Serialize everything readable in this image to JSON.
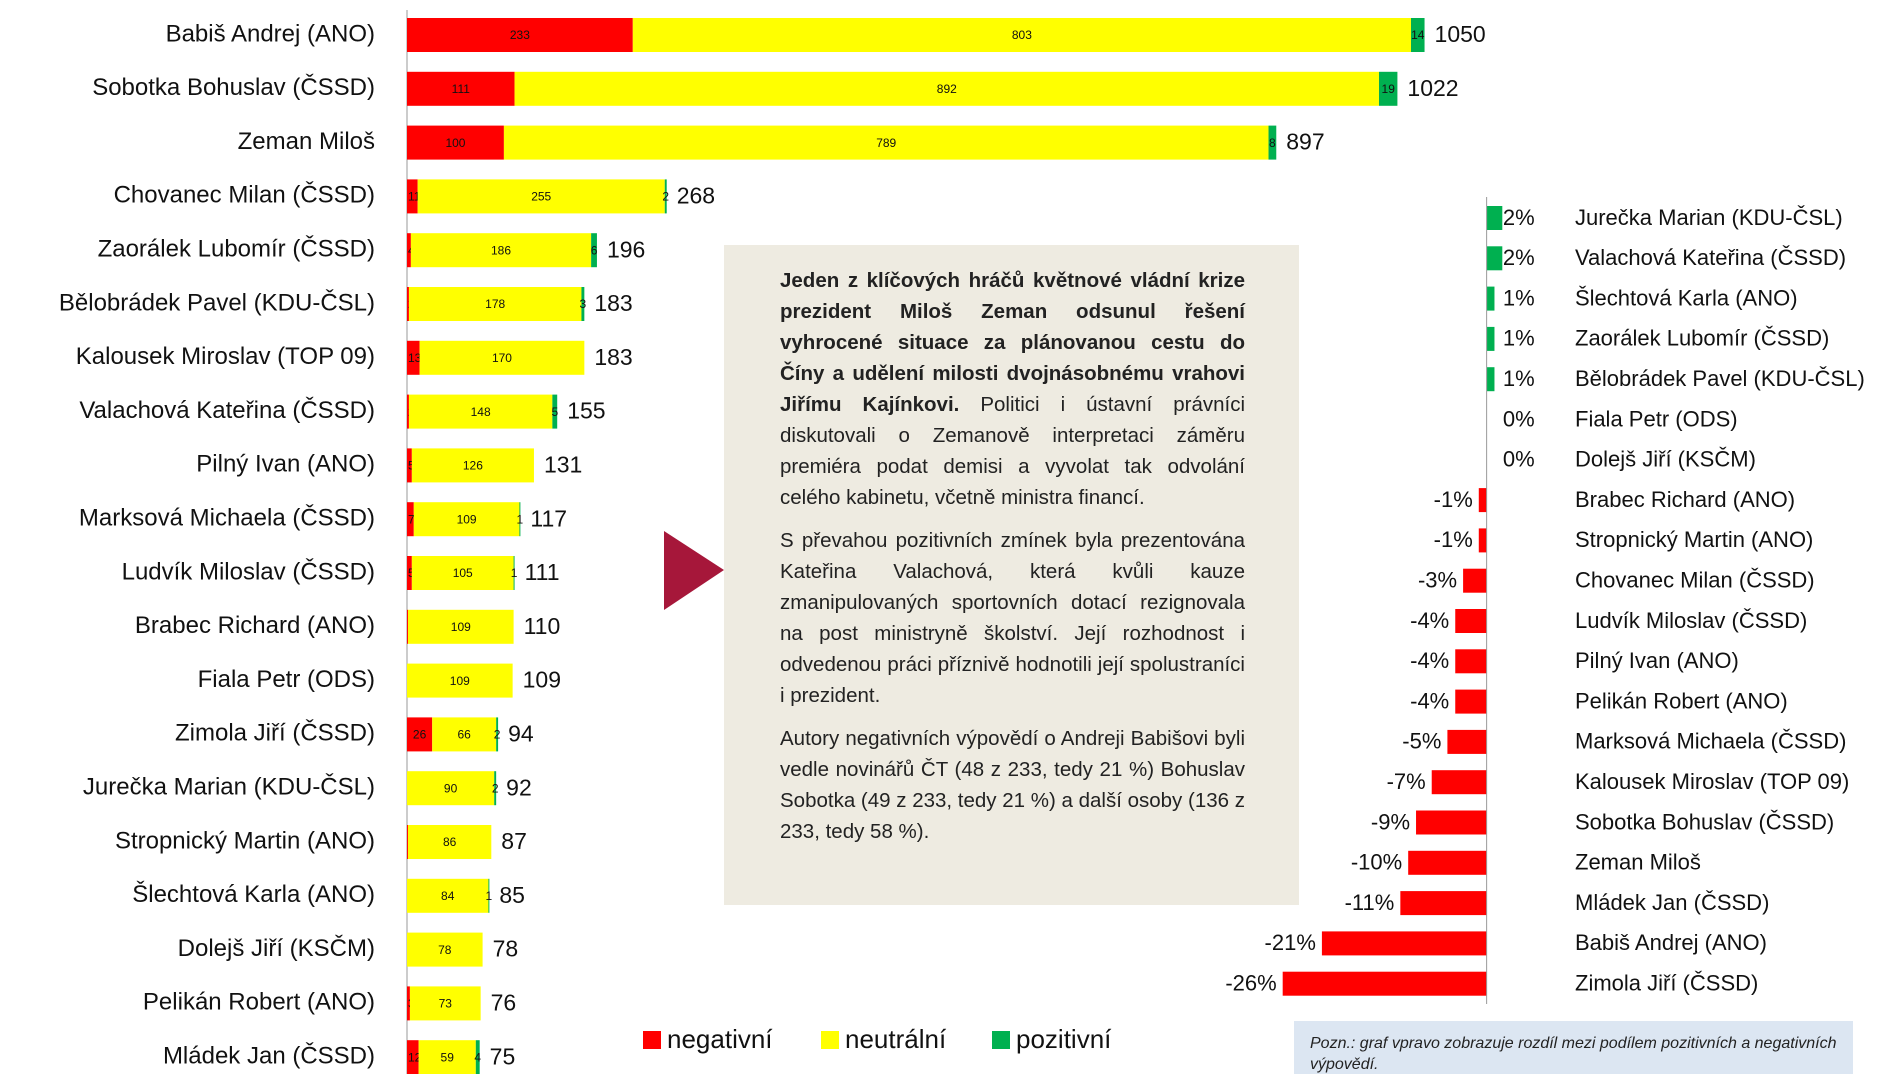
{
  "chart_data": [
    {
      "type": "stacked-bar",
      "categories": [
        "Babiš Andrej (ANO)",
        "Sobotka Bohuslav (ČSSD)",
        "Zeman Miloš",
        "Chovanec Milan (ČSSD)",
        "Zaorálek Lubomír (ČSSD)",
        "Bělobrádek Pavel (KDU-ČSL)",
        "Kalousek Miroslav (TOP 09)",
        "Valachová Kateřina (ČSSD)",
        "Pilný Ivan (ANO)",
        "Marksová Michaela (ČSSD)",
        "Ludvík Miloslav (ČSSD)",
        "Brabec Richard (ANO)",
        "Fiala Petr (ODS)",
        "Zimola Jiří (ČSSD)",
        "Jurečka Marian (KDU-ČSL)",
        "Stropnický Martin (ANO)",
        "Šlechtová Karla (ANO)",
        "Dolejš Jiří (KSČM)",
        "Pelikán Robert (ANO)",
        "Mládek Jan (ČSSD)"
      ],
      "series": [
        {
          "name": "negativní",
          "color": "#ff0000",
          "values": [
            233,
            111,
            100,
            11,
            4,
            2,
            13,
            2,
            5,
            7,
            5,
            1,
            null,
            26,
            null,
            1,
            null,
            null,
            3,
            12
          ]
        },
        {
          "name": "neutrální",
          "color": "#ffff00",
          "values": [
            803,
            892,
            789,
            255,
            186,
            178,
            170,
            148,
            126,
            109,
            105,
            109,
            109,
            66,
            90,
            86,
            84,
            78,
            73,
            59
          ]
        },
        {
          "name": "pozitivní",
          "color": "#00b050",
          "values": [
            14,
            19,
            8,
            2,
            6,
            3,
            null,
            5,
            null,
            1,
            1,
            null,
            null,
            2,
            2,
            null,
            1,
            null,
            null,
            4
          ]
        }
      ],
      "totals": [
        1050,
        1022,
        897,
        268,
        196,
        183,
        183,
        155,
        131,
        117,
        111,
        110,
        109,
        94,
        92,
        87,
        85,
        78,
        76,
        75
      ],
      "xlim": [
        0,
        1100
      ]
    },
    {
      "type": "diverging-bar",
      "categories": [
        "Jurečka Marian (KDU-ČSL)",
        "Valachová Kateřina (ČSSD)",
        "Šlechtová Karla (ANO)",
        "Zaorálek Lubomír (ČSSD)",
        "Bělobrádek Pavel (KDU-ČSL)",
        "Fiala Petr (ODS)",
        "Dolejš Jiří (KSČM)",
        "Brabec Richard (ANO)",
        "Stropnický Martin (ANO)",
        "Chovanec Milan (ČSSD)",
        "Ludvík Miloslav (ČSSD)",
        "Pilný Ivan (ANO)",
        "Pelikán Robert (ANO)",
        "Marksová Michaela (ČSSD)",
        "Kalousek Miroslav (TOP 09)",
        "Sobotka Bohuslav (ČSSD)",
        "Zeman Miloš",
        "Mládek Jan (ČSSD)",
        "Babiš Andrej (ANO)",
        "Zimola Jiří (ČSSD)"
      ],
      "values": [
        2,
        2,
        1,
        1,
        1,
        0,
        0,
        -1,
        -1,
        -3,
        -4,
        -4,
        -4,
        -5,
        -7,
        -9,
        -10,
        -11,
        -21,
        -26
      ],
      "value_labels": [
        "2%",
        "2%",
        "1%",
        "1%",
        "1%",
        "0%",
        "0%",
        "-1%",
        "-1%",
        "-3%",
        "-4%",
        "-4%",
        "-4%",
        "-5%",
        "-7%",
        "-9%",
        "-10%",
        "-11%",
        "-21%",
        "-26%"
      ],
      "positive_color": "#00b050",
      "negative_color": "#ff0000",
      "xlim": [
        -28,
        4
      ]
    }
  ],
  "text_box": {
    "paragraphs": [
      {
        "bold": "Jeden z klíčových hráčů květnové vládní krize prezident Miloš Zeman odsunul řešení vyhrocené situace za plánovanou cestu do Číny a udělení milosti dvojnásobnému vrahovi Jiřímu Kajínkovi.",
        "text": " Politici i ústavní právníci diskutovali o Zemanově interpretaci záměru premiéra podat demisi a vyvolat tak odvolání celého kabinetu, včetně ministra financí."
      },
      {
        "text": "S převahou pozitivních zmínek byla prezentována Kateřina Valachová, která kvůli kauze zmanipulovaných sportovních dotací rezignovala na post ministryně školství. Její rozhodnost i odvedenou práci příznivě hodnotili její spolustraníci i prezident."
      },
      {
        "text": "Autory negativních výpovědí o Andreji Babišovi byli vedle novinářů ČT (48 z 233, tedy 21 %) Bohuslav Sobotka (49 z 233, tedy 21 %) a další osoby (136 z 233, tedy 58 %)."
      }
    ]
  },
  "note": "Pozn.: graf vpravo zobrazuje rozdíl mezi podílem pozitivních a negativních výpovědí."
}
